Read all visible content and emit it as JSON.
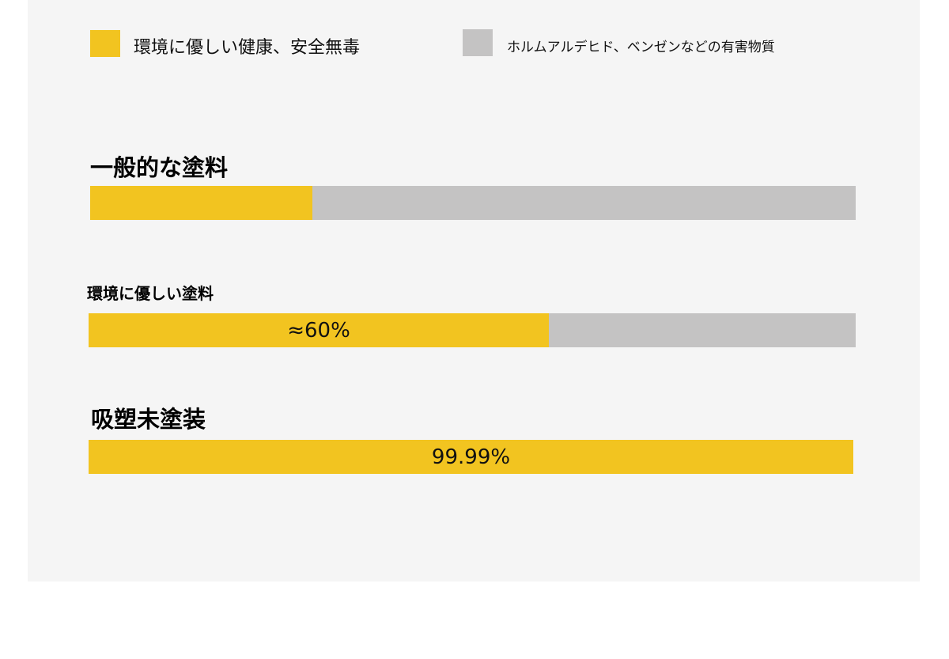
{
  "colors": {
    "safe": "#f2c420",
    "harmful": "#c4c3c3"
  },
  "legend": {
    "safe_label": "環境に優しい健康、安全無毒",
    "harmful_label": "ホルムアルデヒド、ベンゼンなどの有害物質"
  },
  "chart_data": {
    "type": "bar",
    "orientation": "horizontal",
    "stacked": true,
    "categories": [
      "一般的な塗料",
      "環境に優しい塗料",
      "吸塑未塗装"
    ],
    "series": [
      {
        "name": "環境に優しい健康、安全無毒",
        "values": [
          29,
          60,
          100
        ]
      },
      {
        "name": "ホルムアルデヒド、ベンゼンなどの有害物質",
        "values": [
          71,
          40,
          0
        ]
      }
    ],
    "data_labels": [
      "",
      "≈60%",
      "99.99%"
    ],
    "xlim": [
      0,
      100
    ],
    "legend_position": "top",
    "grid": false
  }
}
